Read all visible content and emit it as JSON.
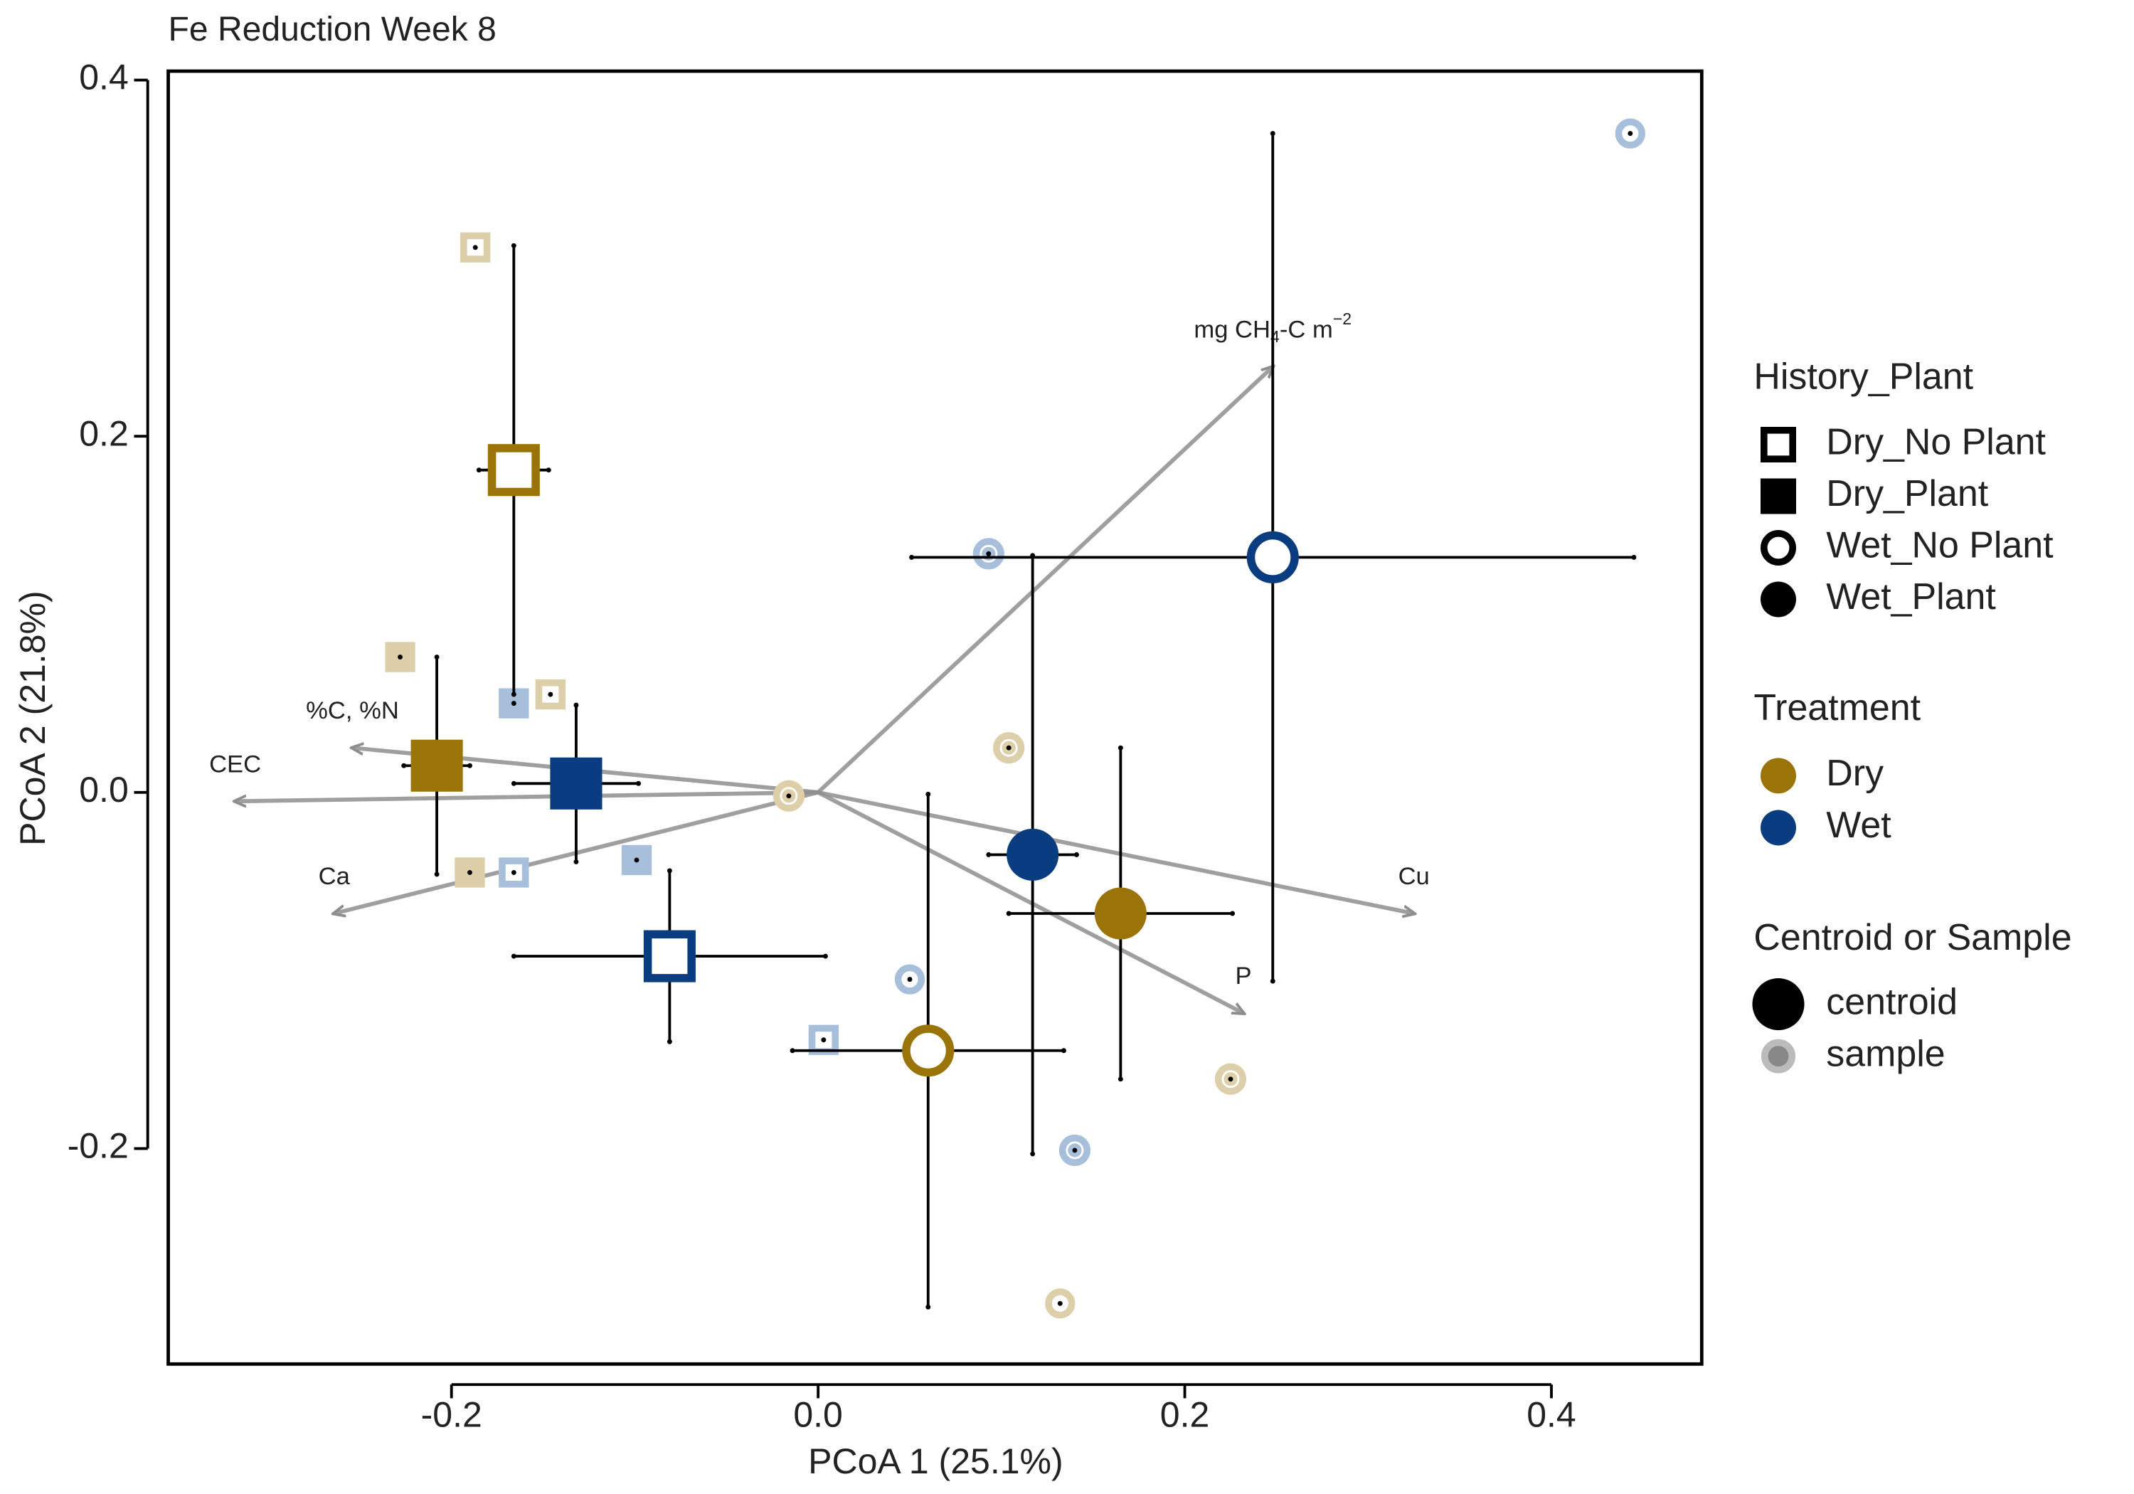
{
  "chart_data": {
    "type": "scatter",
    "title": "Fe Reduction Week 8",
    "x_label": "PCoA 1 (25.1%)",
    "y_label": "PCoA 2 (21.8%)",
    "xlim": [
      -0.3545,
      0.482
    ],
    "ylim": [
      -0.321,
      0.405
    ],
    "xticks": [
      -0.2,
      {
        "value": 0,
        "label": "0.0"
      },
      0.2,
      0.4
    ],
    "yticks": [
      -0.2,
      {
        "value": 0,
        "label": "0.0"
      },
      0.2,
      0.4
    ],
    "treatment_colors": {
      "Dry": "#9a7409",
      "Wet": "#0a3d7f"
    },
    "sample_colors": {
      "Dry": "#dccfa9",
      "Wet": "#a8bfdb"
    },
    "centroids": [
      {
        "group": "Dry_No Plant",
        "treatment": "Dry",
        "x": -0.166,
        "y": 0.181,
        "xerr": 0.019,
        "yerr": 0.126
      },
      {
        "group": "Dry_Plant",
        "treatment": "Dry",
        "x": -0.208,
        "y": 0.015,
        "xerr": 0.018,
        "yerr": 0.061
      },
      {
        "group": "Dry_Plant",
        "treatment": "Wet",
        "x": -0.132,
        "y": 0.005,
        "xerr": 0.034,
        "yerr": 0.044
      },
      {
        "group": "Dry_No Plant",
        "treatment": "Wet",
        "x": -0.081,
        "y": -0.092,
        "xerr": 0.085,
        "yerr": 0.048
      },
      {
        "group": "Wet_No Plant",
        "treatment": "Dry",
        "x": 0.06,
        "y": -0.145,
        "xerr": 0.074,
        "yerr": 0.144
      },
      {
        "group": "Wet_Plant",
        "treatment": "Wet",
        "x": 0.117,
        "y": -0.035,
        "xerr": 0.024,
        "yerr": 0.168
      },
      {
        "group": "Wet_Plant",
        "treatment": "Dry",
        "x": 0.165,
        "y": -0.068,
        "xerr": 0.061,
        "yerr": 0.093
      },
      {
        "group": "Wet_No Plant",
        "treatment": "Wet",
        "x": 0.248,
        "y": 0.132,
        "xerr": 0.197,
        "yerr": 0.238
      }
    ],
    "samples": [
      {
        "group": "Dry_No Plant",
        "treatment": "Dry",
        "x": -0.187,
        "y": 0.306
      },
      {
        "group": "Dry_Plant",
        "treatment": "Dry",
        "x": -0.228,
        "y": 0.076
      },
      {
        "group": "Dry_No Plant",
        "treatment": "Dry",
        "x": -0.146,
        "y": 0.055
      },
      {
        "group": "Dry_Plant",
        "treatment": "Wet",
        "x": -0.166,
        "y": 0.05
      },
      {
        "group": "Dry_Plant",
        "treatment": "Dry",
        "x": -0.19,
        "y": -0.045
      },
      {
        "group": "Dry_No Plant",
        "treatment": "Wet",
        "x": -0.166,
        "y": -0.045
      },
      {
        "group": "Dry_Plant",
        "treatment": "Wet",
        "x": -0.099,
        "y": -0.038
      },
      {
        "group": "Dry_No Plant",
        "treatment": "Wet",
        "x": 0.003,
        "y": -0.139
      },
      {
        "group": "Wet_Plant",
        "treatment": "Dry",
        "x": -0.016,
        "y": -0.002
      },
      {
        "group": "Wet_Plant",
        "treatment": "Wet",
        "x": 0.093,
        "y": 0.134
      },
      {
        "group": "Wet_Plant",
        "treatment": "Dry",
        "x": 0.104,
        "y": 0.025
      },
      {
        "group": "Wet_No Plant",
        "treatment": "Wet",
        "x": 0.05,
        "y": -0.105
      },
      {
        "group": "Wet_Plant",
        "treatment": "Dry",
        "x": 0.225,
        "y": -0.161
      },
      {
        "group": "Wet_Plant",
        "treatment": "Wet",
        "x": 0.14,
        "y": -0.201
      },
      {
        "group": "Wet_No Plant",
        "treatment": "Dry",
        "x": 0.132,
        "y": -0.287
      },
      {
        "group": "Wet_No Plant",
        "treatment": "Wet",
        "x": 0.443,
        "y": 0.37
      }
    ],
    "vectors": [
      {
        "label": [
          "mg CH",
          "4",
          "-C m",
          "−2"
        ],
        "x": 0.248,
        "y": 0.239
      },
      {
        "label": [
          "%C, %N"
        ],
        "x": -0.254,
        "y": 0.025
      },
      {
        "label": [
          "CEC"
        ],
        "x": -0.318,
        "y": -0.005
      },
      {
        "label": [
          "Ca"
        ],
        "x": -0.264,
        "y": -0.068
      },
      {
        "label": [
          "Cu"
        ],
        "x": 0.325,
        "y": -0.068
      },
      {
        "label": [
          "P"
        ],
        "x": 0.232,
        "y": -0.124
      }
    ],
    "legend": {
      "history_title": "History_Plant",
      "history": [
        "Dry_No Plant",
        "Dry_Plant",
        "Wet_No Plant",
        "Wet_Plant"
      ],
      "treatment_title": "Treatment",
      "treatment": [
        "Dry",
        "Wet"
      ],
      "kind_title": "Centroid or Sample",
      "kind": [
        "centroid",
        "sample"
      ]
    }
  }
}
